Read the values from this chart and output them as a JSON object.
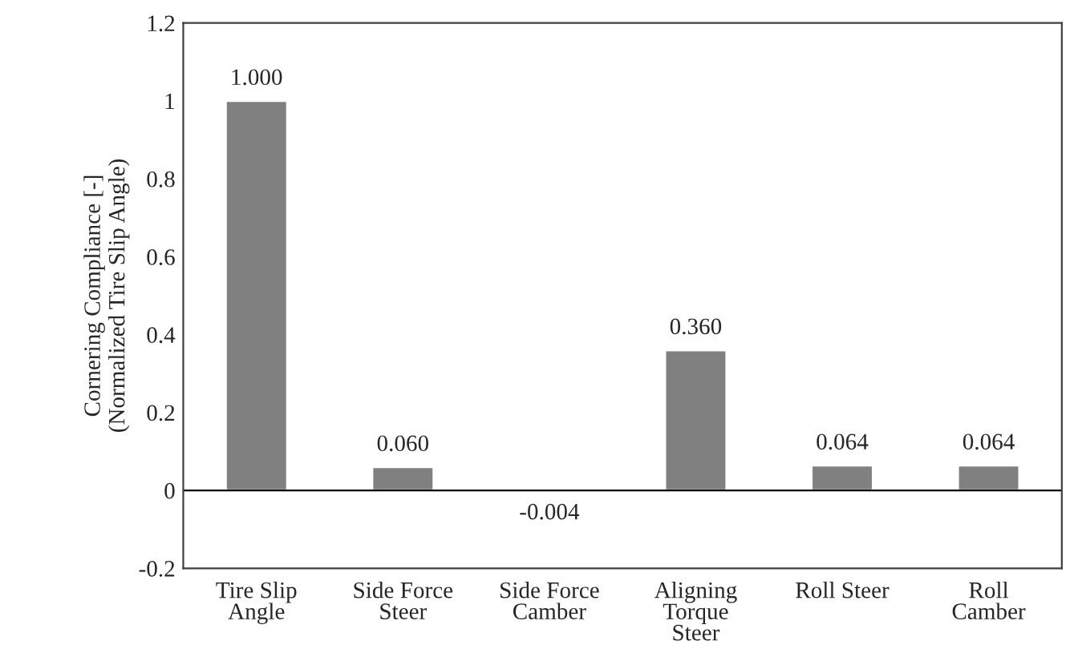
{
  "chart_data": {
    "type": "bar",
    "ylabel": "Cornering Compliance [-]\n(Normalized Tire Slip Angle)",
    "categories": [
      "Tire Slip\nAngle",
      "Side Force\nSteer",
      "Side Force\nCamber",
      "Aligning\nTorque\nSteer",
      "Roll Steer",
      "Roll\nCamber"
    ],
    "values": [
      1.0,
      0.06,
      -0.004,
      0.36,
      0.064,
      0.064
    ],
    "value_labels": [
      "1.000",
      "0.060",
      "-0.004",
      "0.360",
      "0.064",
      "0.064"
    ],
    "color": "#808080",
    "ylim": [
      -0.2,
      1.2
    ],
    "yticks": [
      -0.2,
      0,
      0.2,
      0.4,
      0.6,
      0.8,
      1,
      1.2
    ],
    "ref_lines": [
      {
        "axis": "y",
        "value": 0
      }
    ]
  }
}
